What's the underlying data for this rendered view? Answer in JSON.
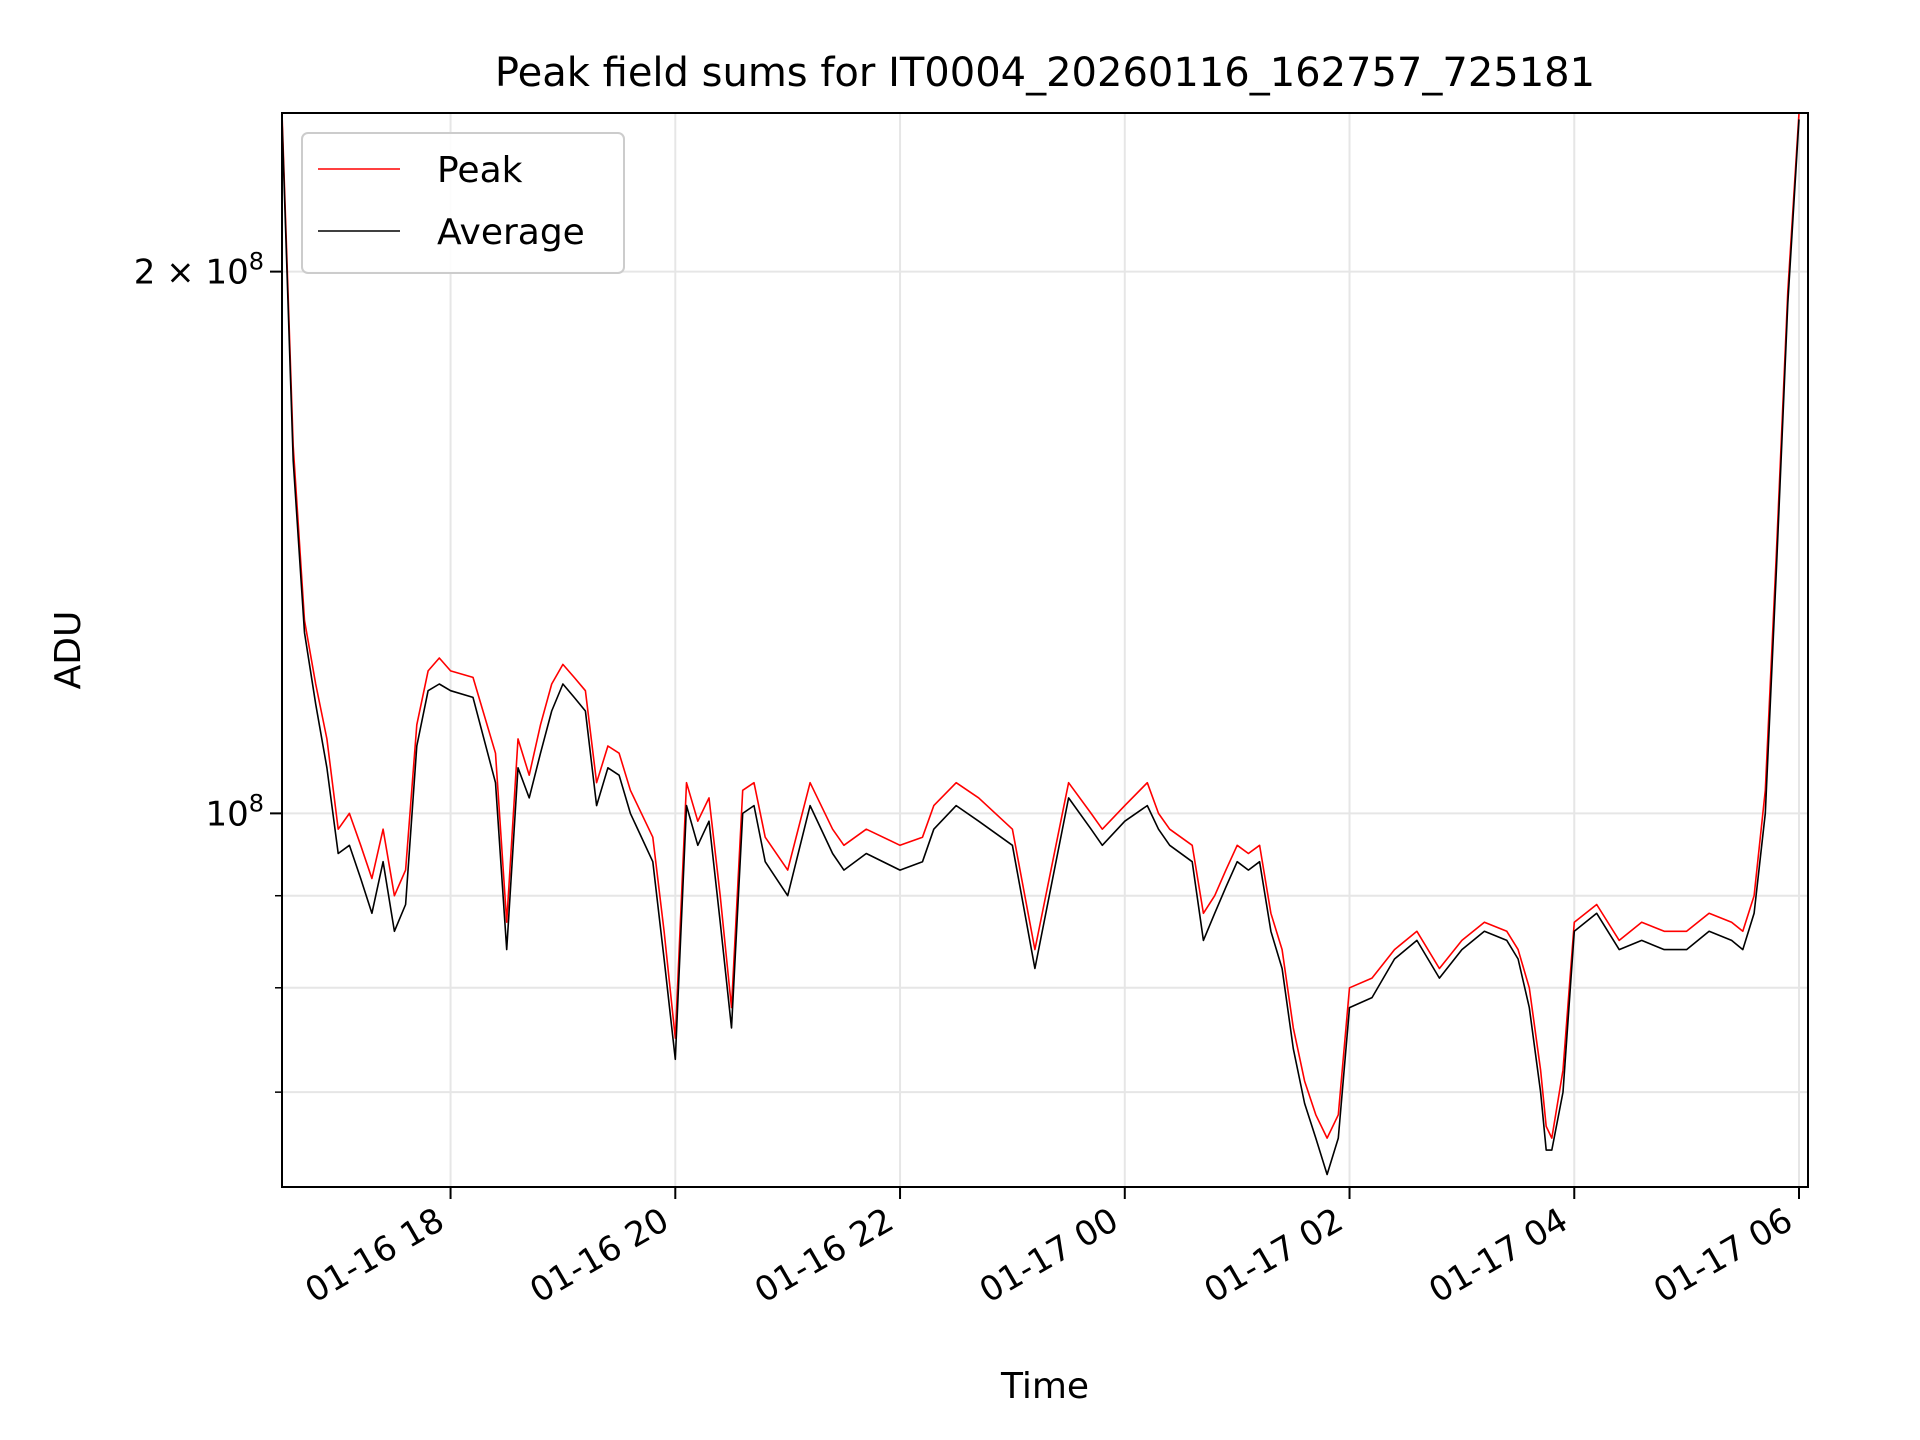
{
  "chart_data": {
    "type": "line",
    "title": "Peak field sums for IT0004_20260116_162757_725181",
    "xlabel": "Time",
    "ylabel": "ADU",
    "yscale": "log",
    "ylim": [
      62000000,
      245000000
    ],
    "xlim_hours": [
      16.5,
      30.08
    ],
    "grid": true,
    "legend": {
      "position": "upper-left",
      "entries": [
        "Peak",
        "Average"
      ]
    },
    "x_ticks": [
      {
        "hour": 18,
        "label": "01-16 18"
      },
      {
        "hour": 20,
        "label": "01-16 20"
      },
      {
        "hour": 22,
        "label": "01-16 22"
      },
      {
        "hour": 24,
        "label": "01-17 00"
      },
      {
        "hour": 26,
        "label": "01-17 02"
      },
      {
        "hour": 28,
        "label": "01-17 04"
      },
      {
        "hour": 30,
        "label": "01-17 06"
      }
    ],
    "y_major_ticks": [
      {
        "value": 100000000,
        "label_base": "10",
        "label_exp": "8",
        "label_mult": ""
      },
      {
        "value": 200000000,
        "label_base": "10",
        "label_exp": "8",
        "label_mult": "2 × "
      }
    ],
    "y_minor_ticks": [
      70000000,
      80000000,
      90000000
    ],
    "series": [
      {
        "name": "Peak",
        "color": "#ff0000",
        "x_hours": [
          16.5,
          16.6,
          16.7,
          16.8,
          16.9,
          17.0,
          17.1,
          17.2,
          17.3,
          17.4,
          17.5,
          17.6,
          17.7,
          17.8,
          17.9,
          18.0,
          18.2,
          18.4,
          18.5,
          18.6,
          18.7,
          18.8,
          18.9,
          19.0,
          19.1,
          19.2,
          19.3,
          19.4,
          19.5,
          19.6,
          19.8,
          19.9,
          20.0,
          20.1,
          20.2,
          20.3,
          20.4,
          20.5,
          20.6,
          20.7,
          20.8,
          21.0,
          21.2,
          21.4,
          21.5,
          21.7,
          22.0,
          22.2,
          22.3,
          22.5,
          22.7,
          23.0,
          23.2,
          23.5,
          23.7,
          23.8,
          24.0,
          24.2,
          24.3,
          24.4,
          24.6,
          24.7,
          24.8,
          24.9,
          25.0,
          25.1,
          25.2,
          25.3,
          25.4,
          25.5,
          25.6,
          25.7,
          25.8,
          25.9,
          26.0,
          26.2,
          26.4,
          26.6,
          26.8,
          27.0,
          27.2,
          27.4,
          27.5,
          27.6,
          27.7,
          27.75,
          27.8,
          27.9,
          28.0,
          28.2,
          28.4,
          28.6,
          28.8,
          29.0,
          29.2,
          29.4,
          29.5,
          29.6,
          29.7,
          29.8,
          29.9,
          30.0
        ],
        "values": [
          245000000,
          160000000,
          128000000,
          118000000,
          110000000,
          98000000,
          100000000,
          96000000,
          92000000,
          98000000,
          90000000,
          93000000,
          112000000,
          120000000,
          122000000,
          120000000,
          119000000,
          108000000,
          87000000,
          110000000,
          105000000,
          112000000,
          118000000,
          121000000,
          119000000,
          117000000,
          104000000,
          109000000,
          108000000,
          103000000,
          97000000,
          86000000,
          75000000,
          104000000,
          99000000,
          102000000,
          90000000,
          78000000,
          103000000,
          104000000,
          97000000,
          93000000,
          104000000,
          98000000,
          96000000,
          98000000,
          96000000,
          97000000,
          101000000,
          104000000,
          102000000,
          98000000,
          84000000,
          104000000,
          100000000,
          98000000,
          101000000,
          104000000,
          100000000,
          98000000,
          96000000,
          88000000,
          90000000,
          93000000,
          96000000,
          95000000,
          96000000,
          88000000,
          84000000,
          76000000,
          71000000,
          68000000,
          66000000,
          68000000,
          80000000,
          81000000,
          84000000,
          86000000,
          82000000,
          85000000,
          87000000,
          86000000,
          84000000,
          80000000,
          72000000,
          67000000,
          66000000,
          72000000,
          87000000,
          89000000,
          85000000,
          87000000,
          86000000,
          86000000,
          88000000,
          87000000,
          86000000,
          90000000,
          103000000,
          140000000,
          195000000,
          245000000
        ]
      },
      {
        "name": "Average",
        "color": "#000000",
        "x_hours": [
          16.5,
          16.6,
          16.7,
          16.8,
          16.9,
          17.0,
          17.1,
          17.2,
          17.3,
          17.4,
          17.5,
          17.6,
          17.7,
          17.8,
          17.9,
          18.0,
          18.2,
          18.4,
          18.5,
          18.6,
          18.7,
          18.8,
          18.9,
          19.0,
          19.1,
          19.2,
          19.3,
          19.4,
          19.5,
          19.6,
          19.8,
          19.9,
          20.0,
          20.1,
          20.2,
          20.3,
          20.4,
          20.5,
          20.6,
          20.7,
          20.8,
          21.0,
          21.2,
          21.4,
          21.5,
          21.7,
          22.0,
          22.2,
          22.3,
          22.5,
          22.7,
          23.0,
          23.2,
          23.5,
          23.7,
          23.8,
          24.0,
          24.2,
          24.3,
          24.4,
          24.6,
          24.7,
          24.8,
          24.9,
          25.0,
          25.1,
          25.2,
          25.3,
          25.4,
          25.5,
          25.6,
          25.7,
          25.8,
          25.9,
          26.0,
          26.2,
          26.4,
          26.6,
          26.8,
          27.0,
          27.2,
          27.4,
          27.5,
          27.6,
          27.7,
          27.75,
          27.8,
          27.9,
          28.0,
          28.2,
          28.4,
          28.6,
          28.8,
          29.0,
          29.2,
          29.4,
          29.5,
          29.6,
          29.7,
          29.8,
          29.9,
          30.0
        ],
        "values": [
          243000000,
          157000000,
          126000000,
          115000000,
          106000000,
          95000000,
          96000000,
          92000000,
          88000000,
          94000000,
          86000000,
          89000000,
          109000000,
          117000000,
          118000000,
          117000000,
          116000000,
          104000000,
          84000000,
          106000000,
          102000000,
          108000000,
          114000000,
          118000000,
          116000000,
          114000000,
          101000000,
          106000000,
          105000000,
          100000000,
          94000000,
          83000000,
          73000000,
          101000000,
          96000000,
          99000000,
          87000000,
          76000000,
          100000000,
          101000000,
          94000000,
          90000000,
          101000000,
          95000000,
          93000000,
          95000000,
          93000000,
          94000000,
          98000000,
          101000000,
          99000000,
          96000000,
          82000000,
          102000000,
          98000000,
          96000000,
          99000000,
          101000000,
          98000000,
          96000000,
          94000000,
          85000000,
          88000000,
          91000000,
          94000000,
          93000000,
          94000000,
          86000000,
          82000000,
          74000000,
          69000000,
          66000000,
          63000000,
          66000000,
          78000000,
          79000000,
          83000000,
          85000000,
          81000000,
          84000000,
          86000000,
          85000000,
          83000000,
          78000000,
          70000000,
          65000000,
          65000000,
          70000000,
          86000000,
          88000000,
          84000000,
          85000000,
          84000000,
          84000000,
          86000000,
          85000000,
          84000000,
          88000000,
          100000000,
          137000000,
          192000000,
          243000000
        ]
      }
    ]
  }
}
